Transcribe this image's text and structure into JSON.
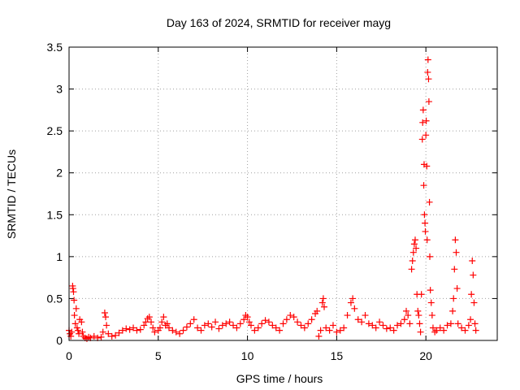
{
  "chart_data": {
    "type": "scatter",
    "title": "Day 163 of 2024, SRMTID for receiver mayg",
    "xlabel": "GPS time / hours",
    "ylabel": "SRMTID / TECUs",
    "xlim": [
      0,
      24
    ],
    "ylim": [
      0,
      3.5
    ],
    "xticks": [
      0,
      5,
      10,
      15,
      20
    ],
    "xtick_labels": [
      "0",
      "5",
      "10",
      "15",
      "20"
    ],
    "yticks": [
      0,
      0.5,
      1,
      1.5,
      2,
      2.5,
      3,
      3.5
    ],
    "ytick_labels": [
      "0",
      "0.5",
      "1",
      "1.5",
      "2",
      "2.5",
      "3",
      "3.5"
    ],
    "grid": true,
    "marker": "+",
    "color": "#ff0000",
    "series": [
      {
        "name": "mayg",
        "points": [
          [
            0.0,
            0.12
          ],
          [
            0.05,
            0.08
          ],
          [
            0.1,
            0.05
          ],
          [
            0.15,
            0.1
          ],
          [
            0.2,
            0.65
          ],
          [
            0.22,
            0.62
          ],
          [
            0.25,
            0.58
          ],
          [
            0.28,
            0.48
          ],
          [
            0.3,
            0.3
          ],
          [
            0.35,
            0.2
          ],
          [
            0.4,
            0.38
          ],
          [
            0.45,
            0.15
          ],
          [
            0.5,
            0.12
          ],
          [
            0.55,
            0.08
          ],
          [
            0.6,
            0.25
          ],
          [
            0.7,
            0.22
          ],
          [
            0.75,
            0.1
          ],
          [
            0.8,
            0.05
          ],
          [
            0.9,
            0.03
          ],
          [
            1.0,
            0.02
          ],
          [
            1.1,
            0.04
          ],
          [
            1.2,
            0.03
          ],
          [
            1.4,
            0.05
          ],
          [
            1.6,
            0.03
          ],
          [
            1.8,
            0.04
          ],
          [
            1.9,
            0.1
          ],
          [
            2.0,
            0.33
          ],
          [
            2.05,
            0.28
          ],
          [
            2.1,
            0.18
          ],
          [
            2.2,
            0.08
          ],
          [
            2.4,
            0.05
          ],
          [
            2.6,
            0.06
          ],
          [
            2.8,
            0.09
          ],
          [
            3.0,
            0.12
          ],
          [
            3.2,
            0.14
          ],
          [
            3.4,
            0.13
          ],
          [
            3.6,
            0.15
          ],
          [
            3.8,
            0.12
          ],
          [
            4.0,
            0.13
          ],
          [
            4.2,
            0.18
          ],
          [
            4.3,
            0.22
          ],
          [
            4.4,
            0.26
          ],
          [
            4.5,
            0.28
          ],
          [
            4.6,
            0.22
          ],
          [
            4.7,
            0.15
          ],
          [
            4.8,
            0.1
          ],
          [
            5.0,
            0.12
          ],
          [
            5.1,
            0.15
          ],
          [
            5.2,
            0.22
          ],
          [
            5.3,
            0.28
          ],
          [
            5.4,
            0.18
          ],
          [
            5.5,
            0.2
          ],
          [
            5.6,
            0.15
          ],
          [
            5.8,
            0.12
          ],
          [
            6.0,
            0.1
          ],
          [
            6.2,
            0.08
          ],
          [
            6.4,
            0.12
          ],
          [
            6.6,
            0.16
          ],
          [
            6.8,
            0.2
          ],
          [
            7.0,
            0.25
          ],
          [
            7.2,
            0.15
          ],
          [
            7.4,
            0.12
          ],
          [
            7.6,
            0.18
          ],
          [
            7.8,
            0.2
          ],
          [
            8.0,
            0.16
          ],
          [
            8.2,
            0.22
          ],
          [
            8.4,
            0.14
          ],
          [
            8.6,
            0.18
          ],
          [
            8.8,
            0.2
          ],
          [
            9.0,
            0.22
          ],
          [
            9.2,
            0.18
          ],
          [
            9.4,
            0.15
          ],
          [
            9.6,
            0.2
          ],
          [
            9.8,
            0.25
          ],
          [
            9.9,
            0.3
          ],
          [
            10.0,
            0.28
          ],
          [
            10.1,
            0.22
          ],
          [
            10.2,
            0.18
          ],
          [
            10.4,
            0.12
          ],
          [
            10.6,
            0.15
          ],
          [
            10.8,
            0.2
          ],
          [
            11.0,
            0.24
          ],
          [
            11.2,
            0.22
          ],
          [
            11.4,
            0.18
          ],
          [
            11.6,
            0.15
          ],
          [
            11.8,
            0.12
          ],
          [
            12.0,
            0.2
          ],
          [
            12.2,
            0.25
          ],
          [
            12.4,
            0.3
          ],
          [
            12.6,
            0.28
          ],
          [
            12.8,
            0.22
          ],
          [
            13.0,
            0.18
          ],
          [
            13.2,
            0.15
          ],
          [
            13.4,
            0.2
          ],
          [
            13.6,
            0.25
          ],
          [
            13.8,
            0.32
          ],
          [
            13.9,
            0.35
          ],
          [
            14.0,
            0.05
          ],
          [
            14.1,
            0.12
          ],
          [
            14.2,
            0.45
          ],
          [
            14.25,
            0.5
          ],
          [
            14.3,
            0.4
          ],
          [
            14.4,
            0.15
          ],
          [
            14.6,
            0.12
          ],
          [
            14.8,
            0.18
          ],
          [
            15.0,
            0.1
          ],
          [
            15.2,
            0.12
          ],
          [
            15.4,
            0.15
          ],
          [
            15.6,
            0.3
          ],
          [
            15.8,
            0.45
          ],
          [
            15.9,
            0.5
          ],
          [
            16.0,
            0.38
          ],
          [
            16.2,
            0.25
          ],
          [
            16.4,
            0.22
          ],
          [
            16.6,
            0.3
          ],
          [
            16.8,
            0.2
          ],
          [
            17.0,
            0.18
          ],
          [
            17.2,
            0.15
          ],
          [
            17.4,
            0.22
          ],
          [
            17.6,
            0.18
          ],
          [
            17.8,
            0.14
          ],
          [
            18.0,
            0.15
          ],
          [
            18.2,
            0.12
          ],
          [
            18.4,
            0.18
          ],
          [
            18.6,
            0.2
          ],
          [
            18.8,
            0.25
          ],
          [
            18.9,
            0.35
          ],
          [
            19.0,
            0.3
          ],
          [
            19.1,
            0.2
          ],
          [
            19.2,
            0.85
          ],
          [
            19.25,
            0.95
          ],
          [
            19.3,
            1.05
          ],
          [
            19.35,
            1.15
          ],
          [
            19.4,
            1.2
          ],
          [
            19.45,
            1.1
          ],
          [
            19.5,
            0.55
          ],
          [
            19.55,
            0.35
          ],
          [
            19.6,
            0.3
          ],
          [
            19.65,
            0.2
          ],
          [
            19.7,
            0.1
          ],
          [
            19.75,
            0.55
          ],
          [
            19.8,
            2.4
          ],
          [
            19.82,
            2.6
          ],
          [
            19.85,
            2.75
          ],
          [
            19.88,
            1.85
          ],
          [
            19.9,
            2.1
          ],
          [
            19.92,
            1.5
          ],
          [
            19.95,
            1.4
          ],
          [
            19.97,
            1.3
          ],
          [
            20.0,
            2.45
          ],
          [
            20.02,
            2.62
          ],
          [
            20.05,
            2.08
          ],
          [
            20.07,
            1.2
          ],
          [
            20.1,
            3.2
          ],
          [
            20.12,
            3.35
          ],
          [
            20.15,
            3.12
          ],
          [
            20.17,
            2.85
          ],
          [
            20.2,
            1.65
          ],
          [
            20.22,
            1.0
          ],
          [
            20.25,
            0.6
          ],
          [
            20.3,
            0.45
          ],
          [
            20.35,
            0.3
          ],
          [
            20.4,
            0.15
          ],
          [
            20.5,
            0.1
          ],
          [
            20.6,
            0.12
          ],
          [
            20.8,
            0.15
          ],
          [
            21.0,
            0.12
          ],
          [
            21.2,
            0.18
          ],
          [
            21.4,
            0.2
          ],
          [
            21.5,
            0.35
          ],
          [
            21.55,
            0.5
          ],
          [
            21.6,
            0.85
          ],
          [
            21.65,
            1.2
          ],
          [
            21.7,
            1.05
          ],
          [
            21.75,
            0.62
          ],
          [
            21.8,
            0.2
          ],
          [
            22.0,
            0.15
          ],
          [
            22.2,
            0.12
          ],
          [
            22.4,
            0.18
          ],
          [
            22.5,
            0.25
          ],
          [
            22.55,
            0.55
          ],
          [
            22.6,
            0.95
          ],
          [
            22.65,
            0.78
          ],
          [
            22.7,
            0.45
          ],
          [
            22.75,
            0.2
          ],
          [
            22.8,
            0.12
          ]
        ]
      }
    ]
  }
}
